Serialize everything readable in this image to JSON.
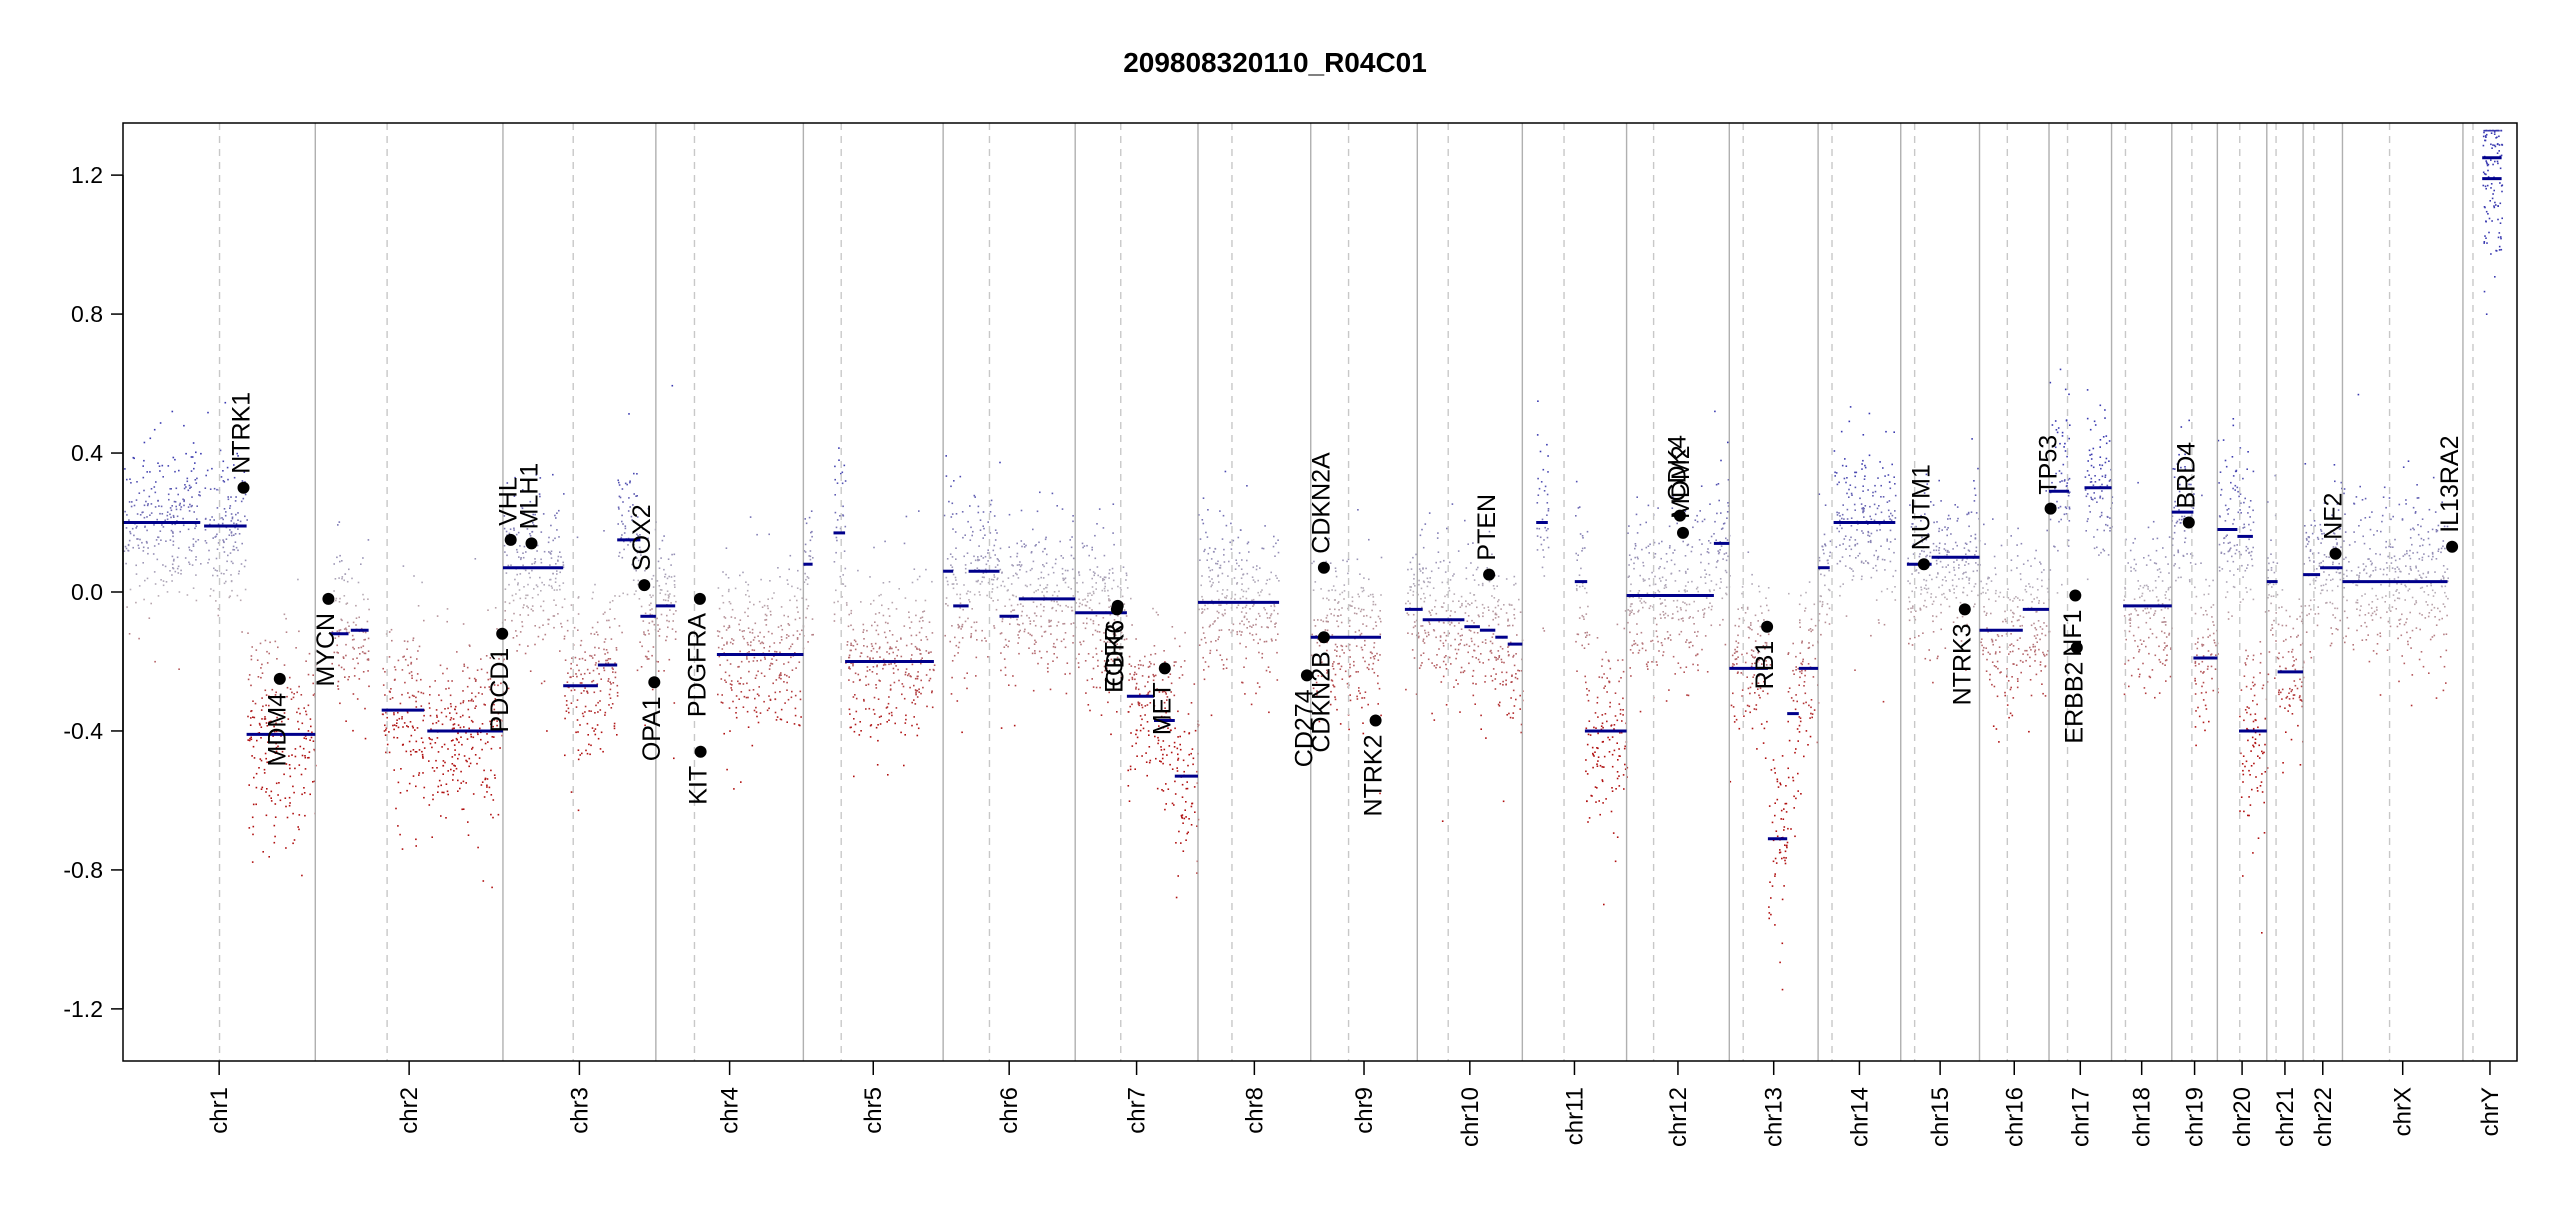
{
  "chart_data": {
    "type": "scatter",
    "subtype": "copy-number-profile",
    "title": "209808320110_R04C01",
    "xlabel": "",
    "ylabel": "",
    "ylim": [
      -1.35,
      1.35
    ],
    "yticks": [
      -1.2,
      -0.8,
      -0.4,
      0.0,
      0.4,
      0.8,
      1.2
    ],
    "ytick_labels": [
      "-1.2",
      "-0.8",
      "-0.4",
      "0.0",
      "0.4",
      "0.8",
      "1.2"
    ],
    "genome_length": 3.1,
    "chromosomes": [
      {
        "name": "chr1",
        "start": 0.0,
        "end": 0.249,
        "centromere": 0.125
      },
      {
        "name": "chr2",
        "start": 0.249,
        "end": 0.492,
        "centromere": 0.342
      },
      {
        "name": "chr3",
        "start": 0.492,
        "end": 0.69,
        "centromere": 0.583
      },
      {
        "name": "chr4",
        "start": 0.69,
        "end": 0.881,
        "centromere": 0.74
      },
      {
        "name": "chr5",
        "start": 0.881,
        "end": 1.062,
        "centromere": 0.93
      },
      {
        "name": "chr6",
        "start": 1.062,
        "end": 1.233,
        "centromere": 1.122
      },
      {
        "name": "chr7",
        "start": 1.233,
        "end": 1.392,
        "centromere": 1.292
      },
      {
        "name": "chr8",
        "start": 1.392,
        "end": 1.538,
        "centromere": 1.436
      },
      {
        "name": "chr9",
        "start": 1.538,
        "end": 1.676,
        "centromere": 1.587
      },
      {
        "name": "chr10",
        "start": 1.676,
        "end": 1.812,
        "centromere": 1.716
      },
      {
        "name": "chr11",
        "start": 1.812,
        "end": 1.947,
        "centromere": 1.866
      },
      {
        "name": "chr12",
        "start": 1.947,
        "end": 2.08,
        "centromere": 1.982
      },
      {
        "name": "chr13",
        "start": 2.08,
        "end": 2.195,
        "centromere": 2.098
      },
      {
        "name": "chr14",
        "start": 2.195,
        "end": 2.302,
        "centromere": 2.213
      },
      {
        "name": "chr15",
        "start": 2.302,
        "end": 2.404,
        "centromere": 2.32
      },
      {
        "name": "chr16",
        "start": 2.404,
        "end": 2.494,
        "centromere": 2.44
      },
      {
        "name": "chr17",
        "start": 2.494,
        "end": 2.575,
        "centromere": 2.518
      },
      {
        "name": "chr18",
        "start": 2.575,
        "end": 2.653,
        "centromere": 2.593
      },
      {
        "name": "chr19",
        "start": 2.653,
        "end": 2.712,
        "centromere": 2.679
      },
      {
        "name": "chr20",
        "start": 2.712,
        "end": 2.776,
        "centromere": 2.741
      },
      {
        "name": "chr21",
        "start": 2.776,
        "end": 2.823,
        "centromere": 2.788
      },
      {
        "name": "chr22",
        "start": 2.823,
        "end": 2.874,
        "centromere": 2.837
      },
      {
        "name": "chrX",
        "start": 2.874,
        "end": 3.03,
        "centromere": 2.935
      },
      {
        "name": "chrY",
        "start": 3.03,
        "end": 3.1,
        "centromere": 3.043
      }
    ],
    "segments": [
      {
        "chrom": "chr1",
        "x0": 0.0,
        "x1": 0.1,
        "y": 0.2
      },
      {
        "chrom": "chr1",
        "x0": 0.105,
        "x1": 0.16,
        "y": 0.19
      },
      {
        "chrom": "chr1",
        "x0": 0.16,
        "x1": 0.249,
        "y": -0.41
      },
      {
        "chrom": "chr2",
        "x0": 0.268,
        "x1": 0.292,
        "y": -0.12
      },
      {
        "chrom": "chr2",
        "x0": 0.295,
        "x1": 0.318,
        "y": -0.11
      },
      {
        "chrom": "chr2",
        "x0": 0.335,
        "x1": 0.39,
        "y": -0.34
      },
      {
        "chrom": "chr2",
        "x0": 0.394,
        "x1": 0.492,
        "y": -0.4
      },
      {
        "chrom": "chr3",
        "x0": 0.492,
        "x1": 0.57,
        "y": 0.07
      },
      {
        "chrom": "chr3",
        "x0": 0.57,
        "x1": 0.615,
        "y": -0.27
      },
      {
        "chrom": "chr3",
        "x0": 0.615,
        "x1": 0.64,
        "y": -0.21
      },
      {
        "chrom": "chr3",
        "x0": 0.64,
        "x1": 0.67,
        "y": 0.15
      },
      {
        "chrom": "chr3",
        "x0": 0.67,
        "x1": 0.69,
        "y": -0.07
      },
      {
        "chrom": "chr4",
        "x0": 0.69,
        "x1": 0.715,
        "y": -0.04
      },
      {
        "chrom": "chr4",
        "x0": 0.769,
        "x1": 0.881,
        "y": -0.18
      },
      {
        "chrom": "chr5",
        "x0": 0.881,
        "x1": 0.893,
        "y": 0.08
      },
      {
        "chrom": "chr5",
        "x0": 0.92,
        "x1": 0.935,
        "y": 0.17
      },
      {
        "chrom": "chr5",
        "x0": 0.935,
        "x1": 1.05,
        "y": -0.2
      },
      {
        "chrom": "chr6",
        "x0": 1.062,
        "x1": 1.075,
        "y": 0.06
      },
      {
        "chrom": "chr6",
        "x0": 1.075,
        "x1": 1.095,
        "y": -0.04
      },
      {
        "chrom": "chr6",
        "x0": 1.095,
        "x1": 1.135,
        "y": 0.06
      },
      {
        "chrom": "chr6",
        "x0": 1.135,
        "x1": 1.16,
        "y": -0.07
      },
      {
        "chrom": "chr6",
        "x0": 1.16,
        "x1": 1.233,
        "y": -0.02
      },
      {
        "chrom": "chr7",
        "x0": 1.233,
        "x1": 1.3,
        "y": -0.06
      },
      {
        "chrom": "chr7",
        "x0": 1.3,
        "x1": 1.335,
        "y": -0.3
      },
      {
        "chrom": "chr7",
        "x0": 1.335,
        "x1": 1.362,
        "y": -0.37
      },
      {
        "chrom": "chr7",
        "x0": 1.362,
        "x1": 1.392,
        "y": -0.53
      },
      {
        "chrom": "chr8",
        "x0": 1.392,
        "x1": 1.497,
        "y": -0.03
      },
      {
        "chrom": "chr9",
        "x0": 1.538,
        "x1": 1.629,
        "y": -0.13
      },
      {
        "chrom": "chr10",
        "x0": 1.66,
        "x1": 1.683,
        "y": -0.05
      },
      {
        "chrom": "chr10",
        "x0": 1.683,
        "x1": 1.737,
        "y": -0.08
      },
      {
        "chrom": "chr10",
        "x0": 1.737,
        "x1": 1.757,
        "y": -0.1
      },
      {
        "chrom": "chr10",
        "x0": 1.757,
        "x1": 1.777,
        "y": -0.11
      },
      {
        "chrom": "chr10",
        "x0": 1.777,
        "x1": 1.793,
        "y": -0.13
      },
      {
        "chrom": "chr10",
        "x0": 1.793,
        "x1": 1.812,
        "y": -0.15
      },
      {
        "chrom": "chr11",
        "x0": 1.83,
        "x1": 1.845,
        "y": 0.2
      },
      {
        "chrom": "chr11",
        "x0": 1.88,
        "x1": 1.896,
        "y": 0.03
      },
      {
        "chrom": "chr11",
        "x0": 1.893,
        "x1": 1.947,
        "y": -0.4
      },
      {
        "chrom": "chr12",
        "x0": 1.947,
        "x1": 2.06,
        "y": -0.01
      },
      {
        "chrom": "chr12",
        "x0": 2.06,
        "x1": 2.08,
        "y": 0.14
      },
      {
        "chrom": "chr13",
        "x0": 2.08,
        "x1": 2.13,
        "y": -0.22
      },
      {
        "chrom": "chr13",
        "x0": 2.13,
        "x1": 2.155,
        "y": -0.71
      },
      {
        "chrom": "chr13",
        "x0": 2.155,
        "x1": 2.17,
        "y": -0.35
      },
      {
        "chrom": "chr13",
        "x0": 2.17,
        "x1": 2.195,
        "y": -0.22
      },
      {
        "chrom": "chr14",
        "x0": 2.195,
        "x1": 2.21,
        "y": 0.07
      },
      {
        "chrom": "chr14",
        "x0": 2.215,
        "x1": 2.295,
        "y": 0.2
      },
      {
        "chrom": "chr15",
        "x0": 2.31,
        "x1": 2.342,
        "y": 0.08
      },
      {
        "chrom": "chr15",
        "x0": 2.342,
        "x1": 2.404,
        "y": 0.1
      },
      {
        "chrom": "chr16",
        "x0": 2.404,
        "x1": 2.46,
        "y": -0.11
      },
      {
        "chrom": "chr16",
        "x0": 2.46,
        "x1": 2.494,
        "y": -0.05
      },
      {
        "chrom": "chr17",
        "x0": 2.494,
        "x1": 2.52,
        "y": 0.29
      },
      {
        "chrom": "chr17",
        "x0": 2.54,
        "x1": 2.575,
        "y": 0.3
      },
      {
        "chrom": "chr18",
        "x0": 2.59,
        "x1": 2.653,
        "y": -0.04
      },
      {
        "chrom": "chr19",
        "x0": 2.653,
        "x1": 2.681,
        "y": 0.23
      },
      {
        "chrom": "chr19",
        "x0": 2.681,
        "x1": 2.712,
        "y": -0.19
      },
      {
        "chrom": "chr20",
        "x0": 2.712,
        "x1": 2.738,
        "y": 0.18
      },
      {
        "chrom": "chr20",
        "x0": 2.738,
        "x1": 2.758,
        "y": 0.16
      },
      {
        "chrom": "chr20",
        "x0": 2.74,
        "x1": 2.776,
        "y": -0.4
      },
      {
        "chrom": "chr21",
        "x0": 2.776,
        "x1": 2.79,
        "y": 0.03
      },
      {
        "chrom": "chr21",
        "x0": 2.79,
        "x1": 2.823,
        "y": -0.23
      },
      {
        "chrom": "chr22",
        "x0": 2.823,
        "x1": 2.845,
        "y": 0.05
      },
      {
        "chrom": "chr22",
        "x0": 2.845,
        "x1": 2.874,
        "y": 0.07
      },
      {
        "chrom": "chrX",
        "x0": 2.874,
        "x1": 3.01,
        "y": 0.03
      },
      {
        "chrom": "chrY",
        "x0": 3.055,
        "x1": 3.08,
        "y": 1.25
      },
      {
        "chrom": "chrY",
        "x0": 3.055,
        "x1": 3.08,
        "y": 1.19
      }
    ],
    "genes": [
      {
        "name": "NTRK1",
        "x": 0.156,
        "y": 0.3,
        "label_side": "above"
      },
      {
        "name": "MDM4",
        "x": 0.203,
        "y": -0.25,
        "label_side": "below"
      },
      {
        "name": "MYCN",
        "x": 0.266,
        "y": -0.02,
        "label_side": "below"
      },
      {
        "name": "PDCD1",
        "x": 0.491,
        "y": -0.12,
        "label_side": "below"
      },
      {
        "name": "VHL",
        "x": 0.502,
        "y": 0.15,
        "label_side": "above"
      },
      {
        "name": "MLH1",
        "x": 0.529,
        "y": 0.14,
        "label_side": "above"
      },
      {
        "name": "SOX2",
        "x": 0.675,
        "y": 0.02,
        "label_side": "above"
      },
      {
        "name": "OPA1",
        "x": 0.688,
        "y": -0.26,
        "label_side": "below"
      },
      {
        "name": "PDGFRA",
        "x": 0.747,
        "y": -0.02,
        "label_side": "below"
      },
      {
        "name": "KIT",
        "x": 0.748,
        "y": -0.46,
        "label_side": "below"
      },
      {
        "name": "EGFR",
        "x": 1.287,
        "y": -0.05,
        "label_side": "below"
      },
      {
        "name": "CDK6",
        "x": 1.288,
        "y": -0.04,
        "label_side": "below"
      },
      {
        "name": "MET",
        "x": 1.349,
        "y": -0.22,
        "label_side": "below"
      },
      {
        "name": "CDK4",
        "x": 2.016,
        "y": 0.22,
        "label_side": "above"
      },
      {
        "name": "MDM2",
        "x": 2.02,
        "y": 0.17,
        "label_side": "above"
      },
      {
        "name": "CD274",
        "x": 1.533,
        "y": -0.24,
        "label_side": "below"
      },
      {
        "name": "CDKN2A",
        "x": 1.555,
        "y": 0.07,
        "label_side": "above"
      },
      {
        "name": "CDKN2B",
        "x": 1.555,
        "y": -0.13,
        "label_side": "below"
      },
      {
        "name": "NTRK2",
        "x": 1.622,
        "y": -0.37,
        "label_side": "below"
      },
      {
        "name": "PTEN",
        "x": 1.769,
        "y": 0.05,
        "label_side": "above"
      },
      {
        "name": "RB1",
        "x": 2.129,
        "y": -0.1,
        "label_side": "below"
      },
      {
        "name": "NUTM1",
        "x": 2.332,
        "y": 0.08,
        "label_side": "above"
      },
      {
        "name": "NTRK3",
        "x": 2.385,
        "y": -0.05,
        "label_side": "below"
      },
      {
        "name": "TP53",
        "x": 2.496,
        "y": 0.24,
        "label_side": "above"
      },
      {
        "name": "NF1",
        "x": 2.528,
        "y": -0.01,
        "label_side": "below"
      },
      {
        "name": "ERBB2",
        "x": 2.53,
        "y": -0.16,
        "label_side": "below"
      },
      {
        "name": "BRD4",
        "x": 2.675,
        "y": 0.2,
        "label_side": "above"
      },
      {
        "name": "NF2",
        "x": 2.865,
        "y": 0.11,
        "label_side": "above"
      },
      {
        "name": "IL13RA2",
        "x": 3.016,
        "y": 0.13,
        "label_side": "above"
      }
    ],
    "colors": {
      "gain": "#3a3ab0",
      "neutral": "#b8b0b8",
      "loss": "#b01010",
      "segment": "#00008b",
      "chrom_boundary": "#b0b0b0",
      "centromere": "#c8c8c8",
      "gene_marker": "#000000"
    }
  }
}
